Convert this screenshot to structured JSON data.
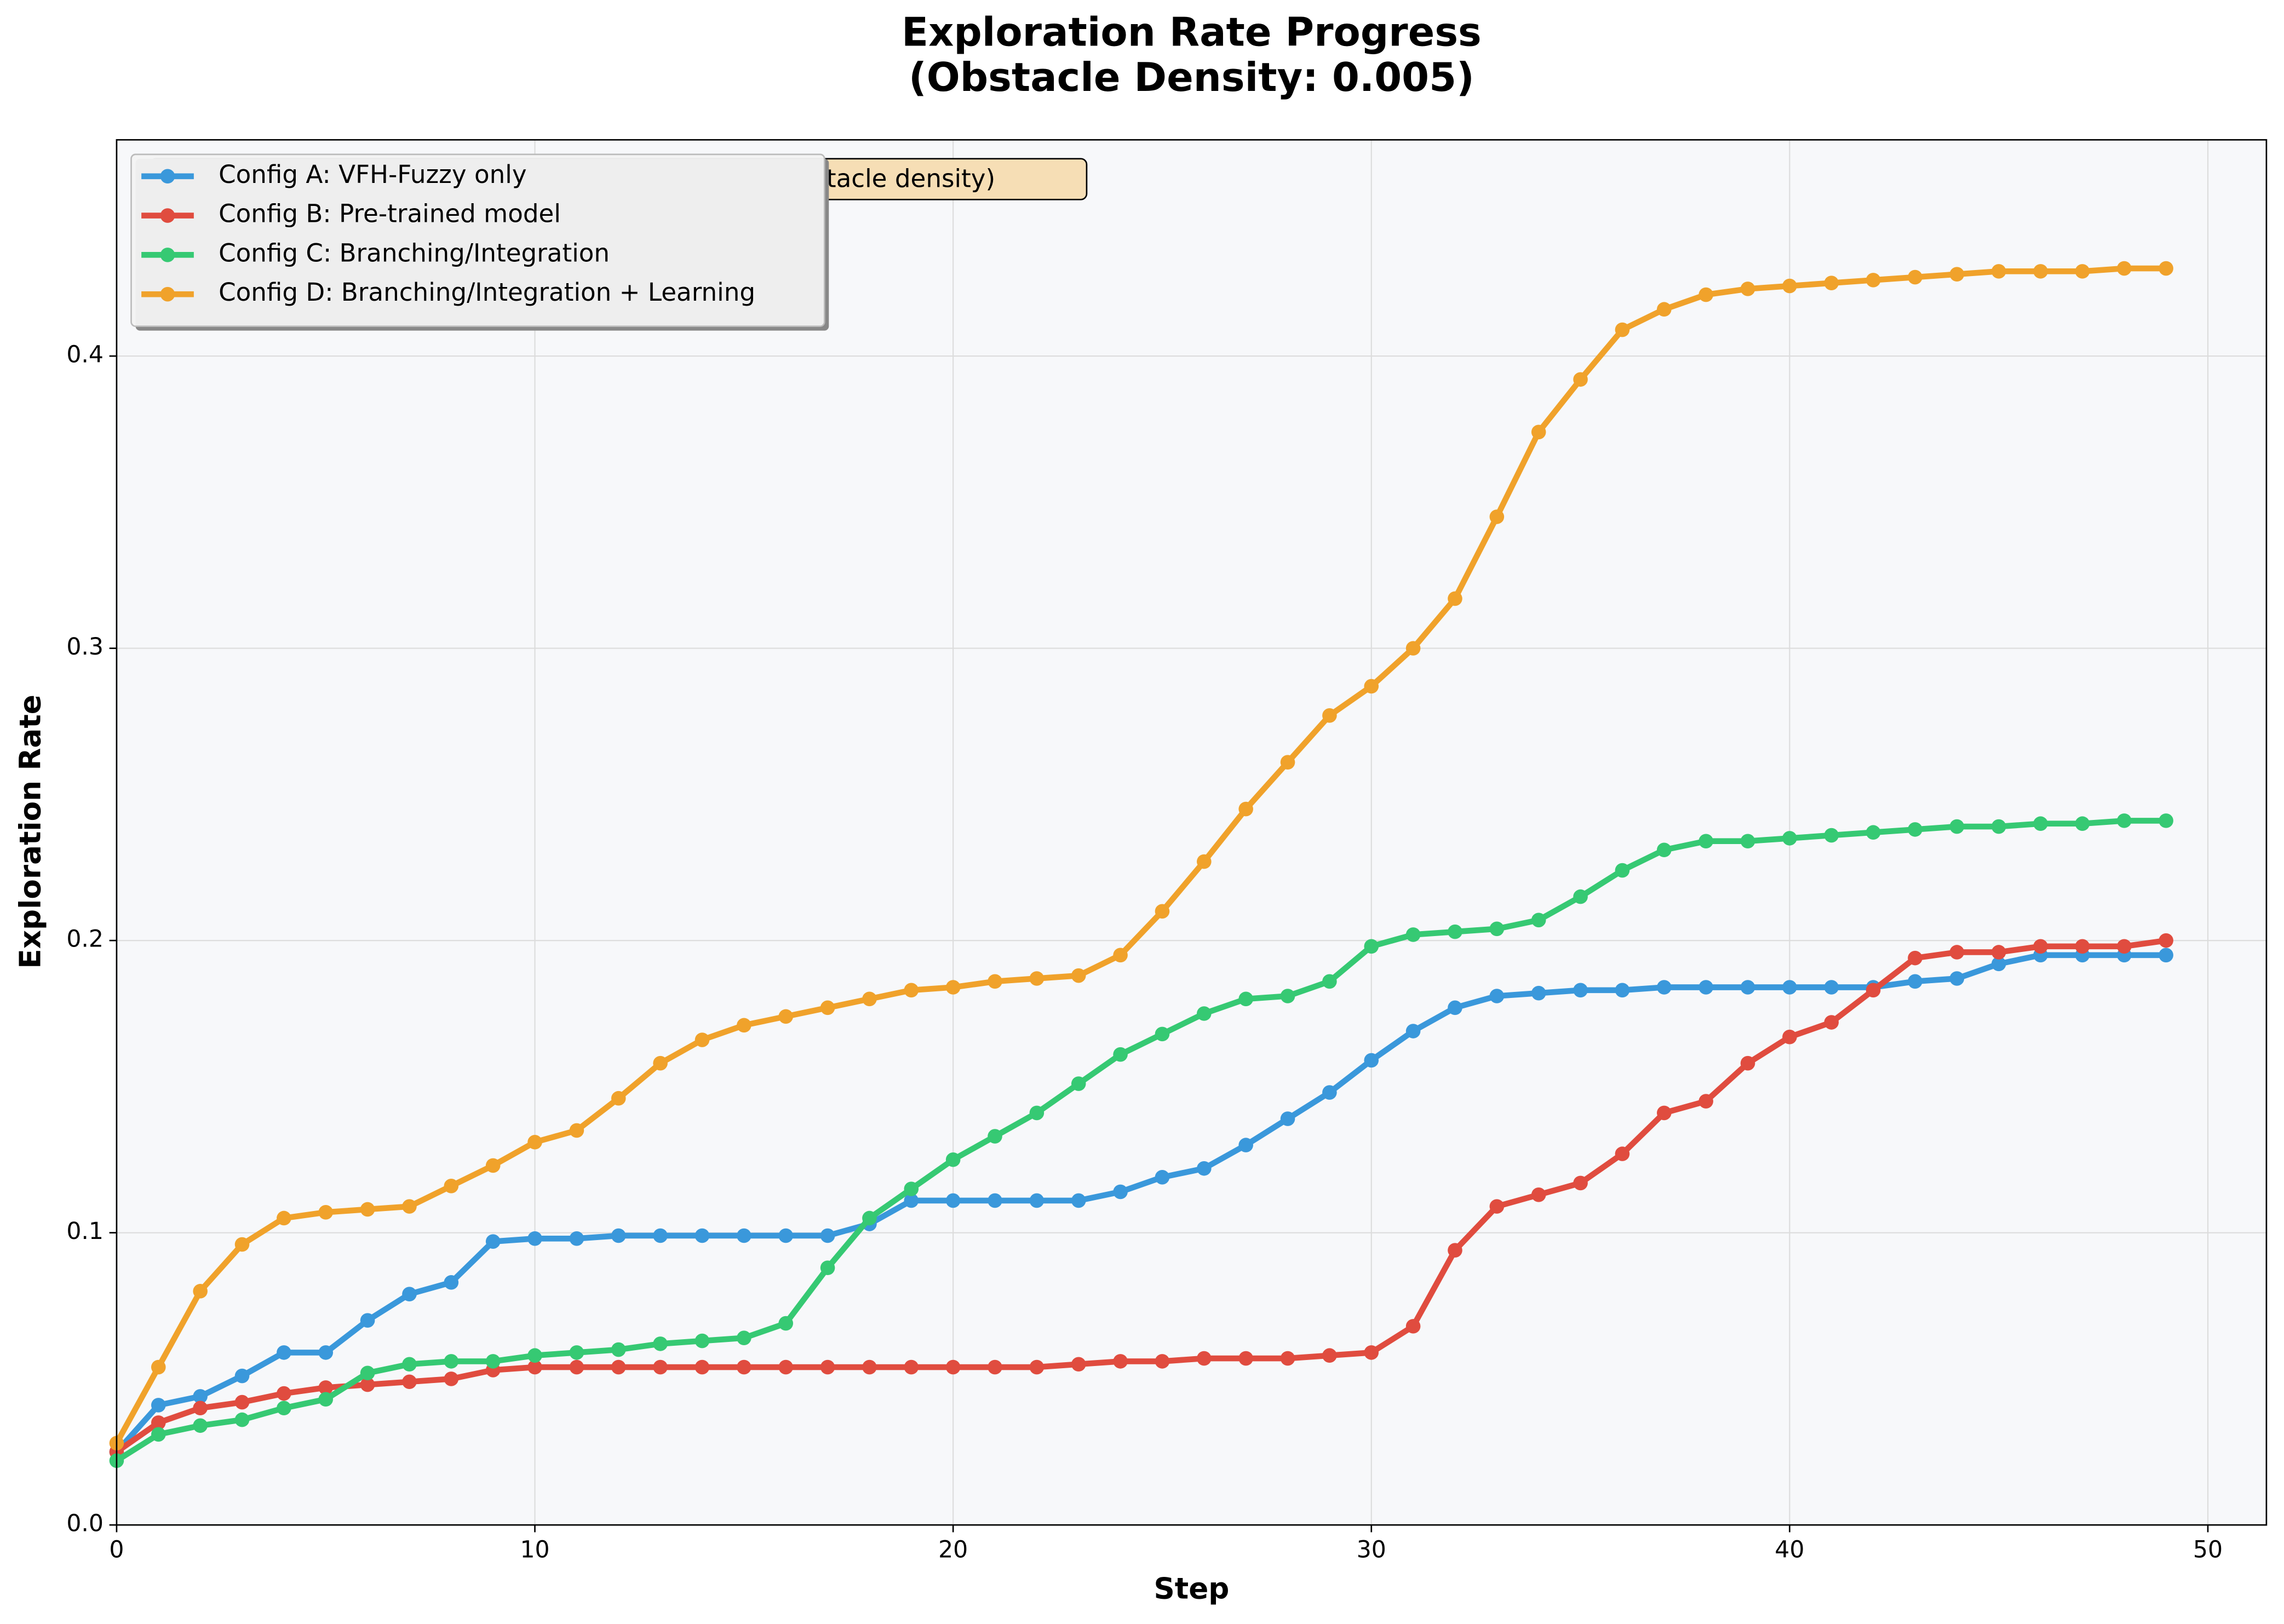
{
  "chart_data": {
    "type": "line",
    "title": [
      "Exploration Rate Progress",
      "(Obstacle Density: 0.005)"
    ],
    "xlabel": "Step",
    "ylabel": "Exploration Rate",
    "annotation": "Environment: Obstacle Density = 0.005 (Medium obstacle density)",
    "x": [
      0,
      1,
      2,
      3,
      4,
      5,
      6,
      7,
      8,
      9,
      10,
      11,
      12,
      13,
      14,
      15,
      16,
      17,
      18,
      19,
      20,
      21,
      22,
      23,
      24,
      25,
      26,
      27,
      28,
      29,
      30,
      31,
      32,
      33,
      34,
      35,
      36,
      37,
      38,
      39,
      40,
      41,
      42,
      43,
      44,
      45,
      46,
      47,
      48,
      49
    ],
    "xlim": [
      0,
      51.4
    ],
    "ylim": [
      0,
      0.474
    ],
    "xticks": [
      0,
      10,
      20,
      30,
      40,
      50
    ],
    "yticks": [
      {
        "value": 0,
        "label": "0.0"
      },
      0.1,
      0.2,
      0.3,
      0.4
    ],
    "grid": true,
    "legend": "upper left",
    "series": [
      {
        "name": "Config A: VFH-Fuzzy only",
        "color": "#3a98db",
        "values": [
          0.025,
          0.041,
          0.044,
          0.051,
          0.059,
          0.059,
          0.07,
          0.079,
          0.083,
          0.097,
          0.098,
          0.098,
          0.099,
          0.099,
          0.099,
          0.099,
          0.099,
          0.099,
          0.103,
          0.111,
          0.111,
          0.111,
          0.111,
          0.111,
          0.114,
          0.119,
          0.122,
          0.13,
          0.139,
          0.148,
          0.159,
          0.169,
          0.177,
          0.181,
          0.182,
          0.183,
          0.183,
          0.184,
          0.184,
          0.184,
          0.184,
          0.184,
          0.184,
          0.186,
          0.187,
          0.192,
          0.195,
          0.195,
          0.195,
          0.195
        ]
      },
      {
        "name": "Config B: Pre-trained model",
        "color": "#e04c3f",
        "values": [
          0.025,
          0.035,
          0.04,
          0.042,
          0.045,
          0.047,
          0.048,
          0.049,
          0.05,
          0.053,
          0.054,
          0.054,
          0.054,
          0.054,
          0.054,
          0.054,
          0.054,
          0.054,
          0.054,
          0.054,
          0.054,
          0.054,
          0.054,
          0.055,
          0.056,
          0.056,
          0.057,
          0.057,
          0.057,
          0.058,
          0.059,
          0.068,
          0.094,
          0.109,
          0.113,
          0.117,
          0.127,
          0.141,
          0.145,
          0.158,
          0.167,
          0.172,
          0.183,
          0.194,
          0.196,
          0.196,
          0.198,
          0.198,
          0.198,
          0.2
        ]
      },
      {
        "name": "Config C: Branching/Integration",
        "color": "#36c973",
        "values": [
          0.022,
          0.031,
          0.034,
          0.036,
          0.04,
          0.043,
          0.052,
          0.055,
          0.056,
          0.056,
          0.058,
          0.059,
          0.06,
          0.062,
          0.063,
          0.064,
          0.069,
          0.088,
          0.105,
          0.115,
          0.125,
          0.133,
          0.141,
          0.151,
          0.161,
          0.168,
          0.175,
          0.18,
          0.181,
          0.186,
          0.198,
          0.202,
          0.203,
          0.204,
          0.207,
          0.215,
          0.224,
          0.231,
          0.234,
          0.234,
          0.235,
          0.236,
          0.237,
          0.238,
          0.239,
          0.239,
          0.24,
          0.24,
          0.241,
          0.241
        ]
      },
      {
        "name": "Config D: Branching/Integration + Learning",
        "color": "#f0a22b",
        "values": [
          0.028,
          0.054,
          0.08,
          0.096,
          0.105,
          0.107,
          0.108,
          0.109,
          0.116,
          0.123,
          0.131,
          0.135,
          0.146,
          0.158,
          0.166,
          0.171,
          0.174,
          0.177,
          0.18,
          0.183,
          0.184,
          0.186,
          0.187,
          0.188,
          0.195,
          0.21,
          0.227,
          0.245,
          0.261,
          0.277,
          0.287,
          0.3,
          0.317,
          0.345,
          0.374,
          0.392,
          0.409,
          0.416,
          0.421,
          0.423,
          0.424,
          0.425,
          0.426,
          0.427,
          0.428,
          0.429,
          0.429,
          0.429,
          0.43,
          0.43
        ]
      }
    ]
  }
}
